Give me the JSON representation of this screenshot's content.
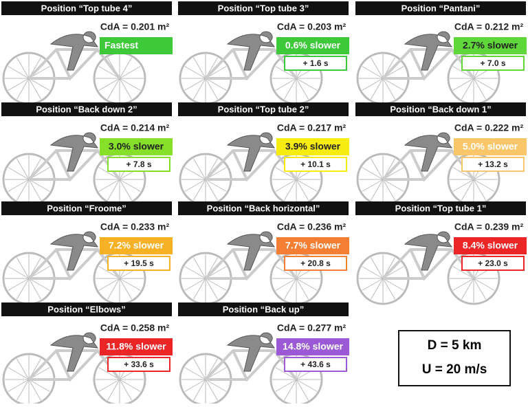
{
  "panels": [
    {
      "title": "Position “Top tube 4”",
      "cda": "CdA = 0.201 m²",
      "result": "Fastest",
      "color": "#3ec93a",
      "text_color": "#ffffff"
    },
    {
      "title": "Position “Top tube 3”",
      "cda": "CdA = 0.203 m²",
      "result": "0.6% slower",
      "time": "+ 1.6 s",
      "color": "#3ec93a",
      "text_color": "#ffffff"
    },
    {
      "title": "Position “Pantani”",
      "cda": "CdA = 0.212 m²",
      "result": "2.7% slower",
      "time": "+ 7.0 s",
      "color": "#5fd73a",
      "text_color": "#222222"
    },
    {
      "title": "Position “Back down 2”",
      "cda": "CdA = 0.214 m²",
      "result": "3.0% slower",
      "time": "+ 7.8 s",
      "color": "#86e02a",
      "text_color": "#222222"
    },
    {
      "title": "Position “Top tube 2”",
      "cda": "CdA = 0.217 m²",
      "result": "3.9% slower",
      "time": "+ 10.1 s",
      "color": "#f7ec10",
      "text_color": "#222222"
    },
    {
      "title": "Position “Back down 1”",
      "cda": "CdA = 0.222 m²",
      "result": "5.0% slower",
      "time": "+ 13.2 s",
      "color": "#f9c66a",
      "text_color": "#ffffff"
    },
    {
      "title": "Position “Froome”",
      "cda": "CdA = 0.233 m²",
      "result": "7.2% slower",
      "time": "+ 19.5 s",
      "color": "#f6b124",
      "text_color": "#ffffff"
    },
    {
      "title": "Position “Back horizontal”",
      "cda": "CdA = 0.236 m²",
      "result": "7.7% slower",
      "time": "+ 20.8 s",
      "color": "#f47f34",
      "text_color": "#ffffff"
    },
    {
      "title": "Position “Top tube 1”",
      "cda": "CdA = 0.239 m²",
      "result": "8.4% slower",
      "time": "+ 23.0 s",
      "color": "#ec2527",
      "text_color": "#ffffff"
    },
    {
      "title": "Position “Elbows”",
      "cda": "CdA = 0.258 m²",
      "result": "11.8% slower",
      "time": "+ 33.6 s",
      "color": "#ec2527",
      "text_color": "#ffffff"
    },
    {
      "title": "Position “Back up”",
      "cda": "CdA = 0.277 m²",
      "result": "14.8% slower",
      "time": "+ 43.6 s",
      "color": "#9b59d6",
      "text_color": "#ffffff"
    }
  ],
  "conditions": [
    "D = 5 km",
    "U = 20 m/s"
  ]
}
